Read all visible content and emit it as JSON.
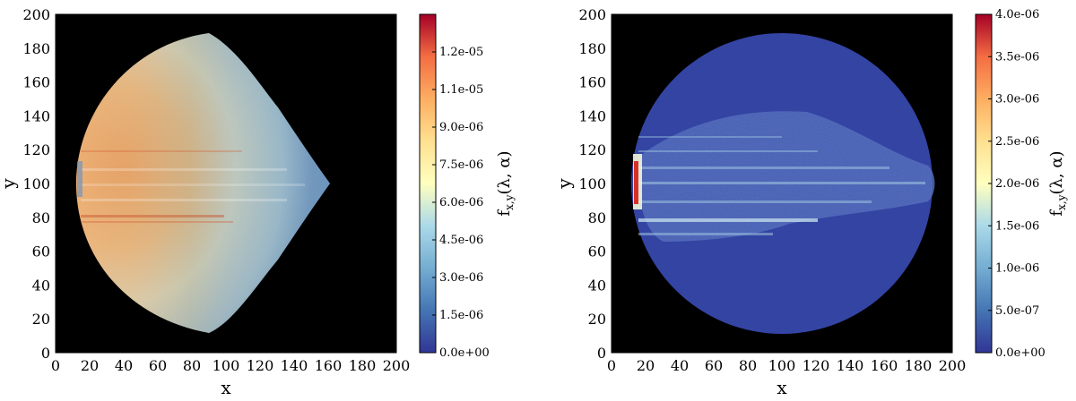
{
  "chart_data": [
    {
      "type": "heatmap",
      "xlabel": "x",
      "ylabel": "y",
      "xlim": [
        0,
        200
      ],
      "ylim": [
        0,
        200
      ],
      "xticks": [
        "0",
        "20",
        "40",
        "60",
        "80",
        "100",
        "120",
        "140",
        "160",
        "180",
        "200"
      ],
      "yticks": [
        "0",
        "20",
        "40",
        "60",
        "80",
        "100",
        "120",
        "140",
        "160",
        "180",
        "200"
      ],
      "background_color": "#000000",
      "colormap": "RdYlBu_r",
      "colorbar": {
        "label": "f_{x,y}(λ,α)",
        "range": [
          0,
          1.35e-05
        ],
        "ticks": [
          "0.0e+00",
          "1.5e-06",
          "3.0e-06",
          "4.5e-06",
          "6.0e-06",
          "7.5e-06",
          "9.0e-06",
          "1.1e-05",
          "1.2e-05"
        ],
        "tick_values": [
          0,
          1.5e-06,
          3e-06,
          4.5e-06,
          6e-06,
          7.5e-06,
          9e-06,
          1.05e-05,
          1.2e-05
        ]
      },
      "description_values": {
        "shape": "left half-disk illuminated region",
        "disk_center": [
          100,
          100
        ],
        "disk_radius": 88,
        "peak_region_x": [
          20,
          60
        ],
        "peak_value": 1e-05,
        "horizontal_bands_y": [
          80,
          90,
          100,
          110,
          120
        ]
      }
    },
    {
      "type": "heatmap",
      "xlabel": "x",
      "ylabel": "y",
      "xlim": [
        0,
        200
      ],
      "ylim": [
        0,
        200
      ],
      "xticks": [
        "0",
        "20",
        "40",
        "60",
        "80",
        "100",
        "120",
        "140",
        "160",
        "180",
        "200"
      ],
      "yticks": [
        "0",
        "20",
        "40",
        "60",
        "80",
        "100",
        "120",
        "140",
        "160",
        "180",
        "200"
      ],
      "background_color": "#000000",
      "colormap": "RdYlBu_r",
      "colorbar": {
        "label": "f_{x,y}(λ,α)",
        "range": [
          0,
          4e-06
        ],
        "ticks": [
          "0.0e+00",
          "5.0e-07",
          "1.0e-06",
          "1.5e-06",
          "2.0e-06",
          "2.5e-06",
          "3.0e-06",
          "3.5e-06",
          "4.0e-06"
        ],
        "tick_values": [
          0,
          5e-07,
          1e-06,
          1.5e-06,
          2e-06,
          2.5e-06,
          3e-06,
          3.5e-06,
          4e-06
        ]
      },
      "description_values": {
        "shape": "full disk with horizontal beam structure",
        "disk_center": [
          100,
          100
        ],
        "disk_radius": 88,
        "disk_base_value": 2e-07,
        "beam_x_range": [
          12,
          186
        ],
        "beam_y_range": [
          58,
          150
        ],
        "hotspot_x": 12,
        "hotspot_value": 4e-06
      }
    }
  ]
}
